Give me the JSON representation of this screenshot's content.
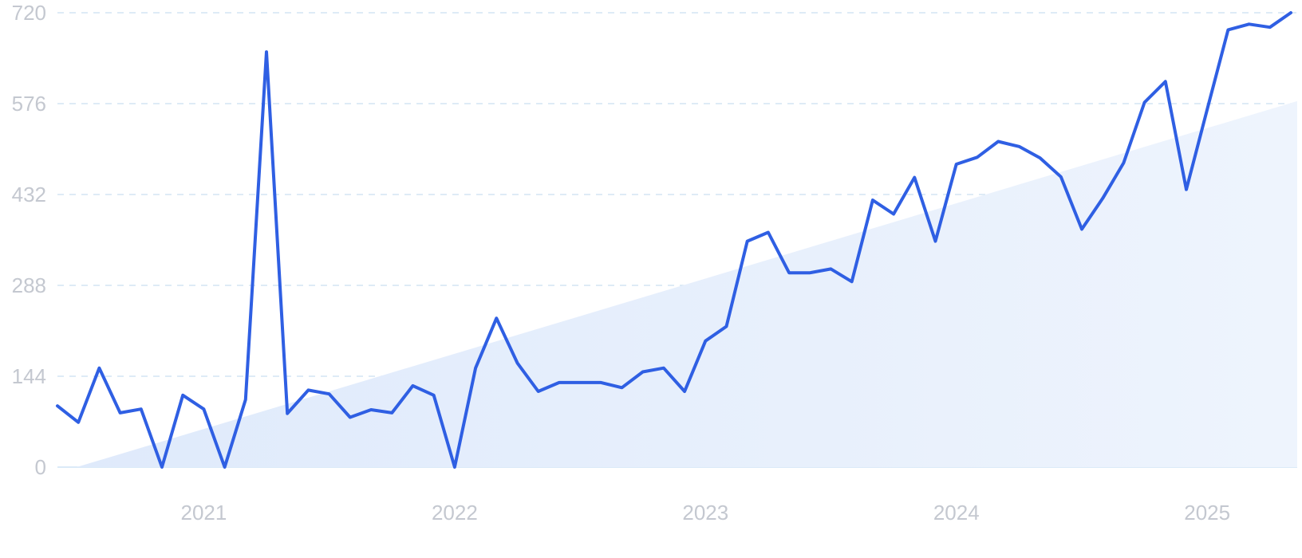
{
  "chart_data": {
    "type": "line",
    "title": "",
    "xlabel": "",
    "ylabel": "",
    "x_ticks": [
      "2021",
      "2022",
      "2023",
      "2024",
      "2025"
    ],
    "y_ticks": [
      "0",
      "144",
      "288",
      "432",
      "576",
      "720"
    ],
    "ylim": [
      0,
      720
    ],
    "xlim": [
      "2020-06",
      "2025-05"
    ],
    "grid": true,
    "legend": "none",
    "colors": {
      "line": "#2f5fe3",
      "trend_fill": "#e3eefb",
      "grid": "#c9dff0",
      "tick_text": "#c4c8d0"
    },
    "x": [
      "2020-06",
      "2020-07",
      "2020-08",
      "2020-09",
      "2020-10",
      "2020-11",
      "2020-12",
      "2021-01",
      "2021-02",
      "2021-03",
      "2021-04",
      "2021-05",
      "2021-06",
      "2021-07",
      "2021-08",
      "2021-09",
      "2021-10",
      "2021-11",
      "2021-12",
      "2022-01",
      "2022-02",
      "2022-03",
      "2022-04",
      "2022-05",
      "2022-06",
      "2022-07",
      "2022-08",
      "2022-09",
      "2022-10",
      "2022-11",
      "2022-12",
      "2023-01",
      "2023-02",
      "2023-03",
      "2023-04",
      "2023-05",
      "2023-06",
      "2023-07",
      "2023-08",
      "2023-09",
      "2023-10",
      "2023-11",
      "2023-12",
      "2024-01",
      "2024-02",
      "2024-03",
      "2024-04",
      "2024-05",
      "2024-06",
      "2024-07",
      "2024-08",
      "2024-09",
      "2024-10",
      "2024-11",
      "2024-12",
      "2025-01",
      "2025-02",
      "2025-03",
      "2025-04",
      "2025-05"
    ],
    "series": [
      {
        "values": [
          97,
          71,
          157,
          86,
          92,
          0,
          114,
          92,
          0,
          107,
          658,
          85,
          122,
          116,
          79,
          91,
          86,
          129,
          114,
          0,
          157,
          236,
          165,
          120,
          134,
          134,
          134,
          126,
          151,
          157,
          120,
          200,
          223,
          358,
          372,
          308,
          308,
          314,
          294,
          423,
          401,
          459,
          358,
          480,
          491,
          516,
          508,
          490,
          460,
          377,
          426,
          482,
          578,
          611,
          440,
          567,
          693,
          702,
          697,
          720
        ]
      }
    ],
    "trend": {
      "start": [
        "2020-06",
        0
      ],
      "end": [
        "2025-05",
        580
      ]
    }
  }
}
